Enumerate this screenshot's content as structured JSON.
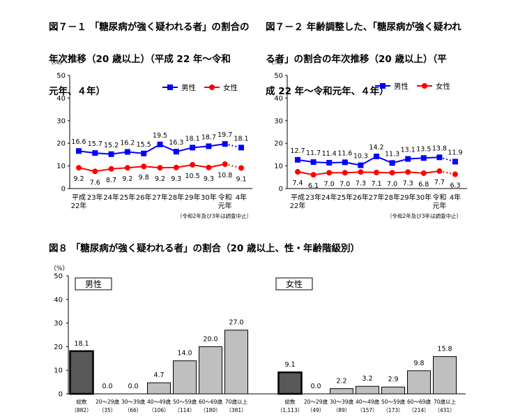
{
  "titles": {
    "fig7_1": "図７－１ 「糖尿病が強く疑われる者」の割合の年次推移（20 歳以上）（平成 22 年～令和元年、４年）",
    "fig7_2": "図７－２ 年齢調整した、「糖尿病が強く疑われる者」の割合の年次推移（20 歳以上）（平成 22 年～令和元年、４年）",
    "fig8": "図８ 「糖尿病が強く疑われる者」の割合（20 歳以上、性・年齢階級別）"
  },
  "title_lines": {
    "fig7_1": [
      "図７－１ 「糖尿病が強く疑われる者」の割合の",
      "年次推移（20 歳以上）（平成 22 年～令和",
      "元年、４年）"
    ],
    "fig7_2": [
      "図７－２ 年齢調整した、「糖尿病が強く疑われ",
      "る者」の割合の年次推移（20 歳以上）（平",
      "成 22 年～令和元年、４年）"
    ]
  },
  "colors": {
    "male": "#0000ff",
    "female": "#ff0000",
    "total_bar": "#595959",
    "age_bar": "#bfbfbf",
    "axis": "#000000"
  },
  "chart_data": [
    {
      "id": "fig7_1",
      "type": "line",
      "unit": "（%）",
      "ylim": [
        0,
        50
      ],
      "yticks": [
        0,
        10,
        20,
        30,
        40,
        50
      ],
      "categories": [
        "平成22年",
        "23年",
        "24年",
        "25年",
        "26年",
        "27年",
        "28年",
        "29年",
        "30年",
        "令和元年",
        "4年"
      ],
      "category_lines": [
        [
          "平成",
          "22年"
        ],
        [
          "23年"
        ],
        [
          "24年"
        ],
        [
          "25年"
        ],
        [
          "26年"
        ],
        [
          "27年"
        ],
        [
          "28年"
        ],
        [
          "29年"
        ],
        [
          "30年"
        ],
        [
          "令和",
          "元年"
        ],
        [
          "4年"
        ]
      ],
      "legend": [
        "男性",
        "女性"
      ],
      "note": "（令和2年及び3年は調査中止）",
      "series": [
        {
          "name": "男性",
          "values": [
            16.6,
            15.7,
            15.2,
            16.2,
            15.5,
            19.5,
            16.3,
            18.1,
            18.7,
            19.7,
            18.1
          ],
          "labels": [
            "16.6",
            "15.7",
            "15.2",
            "16.2",
            "15.5",
            "19.5",
            "16.3",
            "18.1",
            "18.7",
            "19.7",
            "18.1"
          ]
        },
        {
          "name": "女性",
          "values": [
            9.2,
            7.6,
            8.7,
            9.2,
            9.8,
            9.2,
            9.3,
            10.5,
            9.3,
            10.8,
            9.1
          ],
          "labels": [
            "9.2",
            "7.6",
            "8.7",
            "9.2",
            "9.8",
            "9.2",
            "9.3",
            "10.5",
            "9.3",
            "10.8",
            "9.1"
          ]
        }
      ]
    },
    {
      "id": "fig7_2",
      "type": "line",
      "unit": "（%）",
      "ylim": [
        0,
        50
      ],
      "yticks": [
        0,
        10,
        20,
        30,
        40,
        50
      ],
      "categories": [
        "平成22年",
        "23年",
        "24年",
        "25年",
        "26年",
        "27年",
        "28年",
        "29年",
        "30年",
        "令和元年",
        "4年"
      ],
      "category_lines": [
        [
          "平成",
          "22年"
        ],
        [
          "23年"
        ],
        [
          "24年"
        ],
        [
          "25年"
        ],
        [
          "26年"
        ],
        [
          "27年"
        ],
        [
          "28年"
        ],
        [
          "29年"
        ],
        [
          "30年"
        ],
        [
          "令和",
          "元年"
        ],
        [
          "4年"
        ]
      ],
      "legend": [
        "男性",
        "女性"
      ],
      "note": "（令和2年及び3年は調査中止）",
      "series": [
        {
          "name": "男性",
          "values": [
            12.7,
            11.7,
            11.4,
            11.6,
            10.3,
            14.2,
            11.3,
            13.1,
            13.5,
            13.8,
            11.9
          ],
          "labels": [
            "12.7",
            "11.7",
            "11.4",
            "11.6",
            "10.3",
            "14.2",
            "11.3",
            "13.1",
            "13.5",
            "13.8",
            "11.9"
          ]
        },
        {
          "name": "女性",
          "values": [
            7.4,
            6.1,
            7.0,
            7.0,
            7.3,
            7.1,
            7.0,
            7.3,
            6.8,
            7.7,
            6.3
          ],
          "labels": [
            "7.4",
            "6.1",
            "7.0",
            "7.0",
            "7.3",
            "7.1",
            "7.0",
            "7.3",
            "6.8",
            "7.7",
            "6.3"
          ]
        }
      ]
    },
    {
      "id": "fig8",
      "type": "bar",
      "unit": "（%）",
      "ylim": [
        0,
        50
      ],
      "yticks": [
        0,
        10,
        20,
        30,
        40,
        50
      ],
      "panels": [
        {
          "name": "男性",
          "categories": [
            "総数",
            "20～29歳",
            "30～39歳",
            "40～49歳",
            "50～59歳",
            "60～69歳",
            "70歳以上"
          ],
          "counts": [
            "（882）",
            "（35）",
            "（66）",
            "（106）",
            "（114）",
            "（180）",
            "（381）"
          ],
          "values": [
            18.1,
            0.0,
            0.0,
            4.7,
            14.0,
            20.0,
            27.0
          ],
          "labels": [
            "18.1",
            "0.0",
            "0.0",
            "4.7",
            "14.0",
            "20.0",
            "27.0"
          ]
        },
        {
          "name": "女性",
          "categories": [
            "総数",
            "20～29歳",
            "30～39歳",
            "40～49歳",
            "50～59歳",
            "60～69歳",
            "70歳以上"
          ],
          "counts": [
            "（1,113）",
            "（49）",
            "（89）",
            "（157）",
            "（173）",
            "（214）",
            "（431）"
          ],
          "values": [
            9.1,
            0.0,
            2.2,
            3.2,
            2.9,
            9.8,
            15.8
          ],
          "labels": [
            "9.1",
            "0.0",
            "2.2",
            "3.2",
            "2.9",
            "9.8",
            "15.8"
          ]
        }
      ]
    }
  ]
}
